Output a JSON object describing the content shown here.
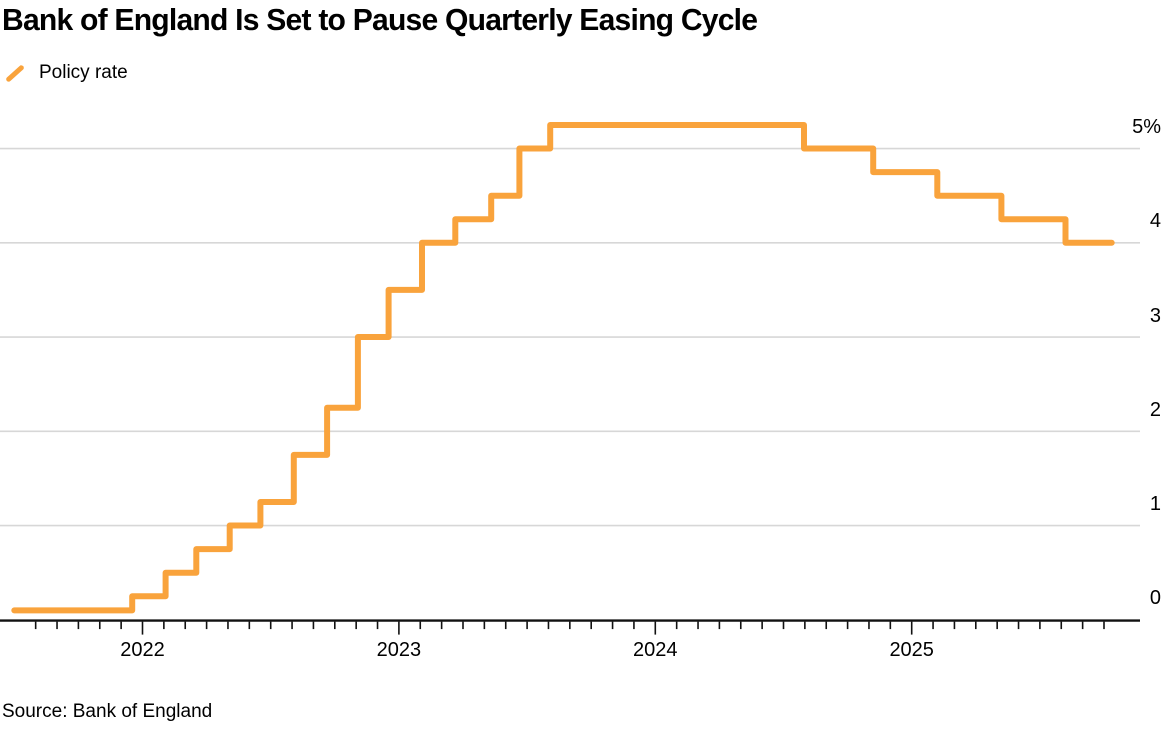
{
  "title": "Bank of England Is Set to Pause Quarterly Easing Cycle",
  "legend": {
    "label": "Policy rate"
  },
  "source": "Source: Bank of England",
  "colors": {
    "line": "#F9A33C",
    "grid": "#D7D7D7",
    "axis": "#111111",
    "text": "#000000"
  },
  "chart_data": {
    "type": "line",
    "subtype": "step",
    "title": "Bank of England Is Set to Pause Quarterly Easing Cycle",
    "xlabel": "",
    "ylabel": "",
    "grid": "horizontal",
    "legend_position": "top-left",
    "x_range": [
      2021.44,
      2026.0
    ],
    "y_range": [
      0,
      5.5
    ],
    "series": [
      {
        "name": "Policy rate",
        "unit": "%",
        "points": [
          {
            "x": 2021.5,
            "rate": 0.1
          },
          {
            "x": 2021.96,
            "rate": 0.25
          },
          {
            "x": 2022.09,
            "rate": 0.5
          },
          {
            "x": 2022.21,
            "rate": 0.75
          },
          {
            "x": 2022.34,
            "rate": 1.0
          },
          {
            "x": 2022.46,
            "rate": 1.25
          },
          {
            "x": 2022.59,
            "rate": 1.75
          },
          {
            "x": 2022.72,
            "rate": 2.25
          },
          {
            "x": 2022.84,
            "rate": 3.0
          },
          {
            "x": 2022.96,
            "rate": 3.5
          },
          {
            "x": 2023.09,
            "rate": 4.0
          },
          {
            "x": 2023.22,
            "rate": 4.25
          },
          {
            "x": 2023.36,
            "rate": 4.5
          },
          {
            "x": 2023.47,
            "rate": 5.0
          },
          {
            "x": 2023.59,
            "rate": 5.25
          },
          {
            "x": 2024.58,
            "rate": 5.0
          },
          {
            "x": 2024.85,
            "rate": 4.75
          },
          {
            "x": 2025.1,
            "rate": 4.5
          },
          {
            "x": 2025.35,
            "rate": 4.25
          },
          {
            "x": 2025.6,
            "rate": 4.0
          },
          {
            "x": 2025.78,
            "rate": 4.0
          }
        ]
      }
    ],
    "x_ticks": [
      {
        "value": 2022,
        "label": "2022"
      },
      {
        "value": 2023,
        "label": "2023"
      },
      {
        "value": 2024,
        "label": "2024"
      },
      {
        "value": 2025,
        "label": "2025"
      }
    ],
    "minor_x_ticks": "monthly",
    "y_ticks": [
      {
        "value": 0,
        "label": "0"
      },
      {
        "value": 1,
        "label": "1"
      },
      {
        "value": 2,
        "label": "2"
      },
      {
        "value": 3,
        "label": "3"
      },
      {
        "value": 4,
        "label": "4"
      },
      {
        "value": 5,
        "label": "5%"
      }
    ]
  }
}
